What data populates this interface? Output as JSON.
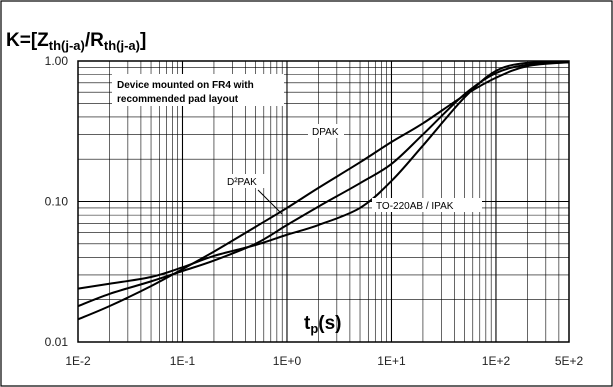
{
  "chart_data": {
    "type": "line",
    "title": "K=[Zth(j-a)/Rth(j-a)]",
    "title_parts": {
      "lead": "K=[Z",
      "sub1": "th(j-a)",
      "mid": "/R",
      "sub2": "th(j-a)",
      "tail": "]"
    },
    "xlabel": "tp(s)",
    "xlabel_parts": {
      "main": "t",
      "sub": "p",
      "tail": "(s)"
    },
    "ylabel": "",
    "x_scale": "log",
    "y_scale": "log",
    "xlim": [
      0.01,
      500
    ],
    "ylim": [
      0.01,
      1.0
    ],
    "x_ticks": [
      {
        "value": 0.01,
        "label": "1E-2"
      },
      {
        "value": 0.1,
        "label": "1E-1"
      },
      {
        "value": 1,
        "label": "1E+0"
      },
      {
        "value": 10,
        "label": "1E+1"
      },
      {
        "value": 100,
        "label": "1E+2"
      },
      {
        "value": 500,
        "label": "5E+2"
      }
    ],
    "y_ticks": [
      {
        "value": 0.01,
        "label": "0.01"
      },
      {
        "value": 0.1,
        "label": "0.10"
      },
      {
        "value": 1.0,
        "label": "1.00"
      }
    ],
    "grid": true,
    "note": [
      "Device mounted on FR4 with",
      "recommended pad layout"
    ],
    "series": [
      {
        "name": "DPAK",
        "x": [
          0.01,
          0.02,
          0.05,
          0.1,
          0.2,
          0.5,
          1,
          2,
          5,
          10,
          20,
          50,
          100,
          200,
          500
        ],
        "y": [
          0.0145,
          0.018,
          0.025,
          0.033,
          0.044,
          0.066,
          0.09,
          0.125,
          0.19,
          0.265,
          0.36,
          0.57,
          0.76,
          0.92,
          0.98
        ]
      },
      {
        "name": "D²PAK",
        "x": [
          0.01,
          0.02,
          0.05,
          0.1,
          0.2,
          0.5,
          1,
          2,
          5,
          10,
          20,
          50,
          100,
          200,
          500
        ],
        "y": [
          0.018,
          0.022,
          0.027,
          0.032,
          0.038,
          0.05,
          0.068,
          0.092,
          0.135,
          0.185,
          0.3,
          0.58,
          0.82,
          0.94,
          0.98
        ]
      },
      {
        "name": "TO-220AB / IPAK",
        "x": [
          0.01,
          0.02,
          0.05,
          0.1,
          0.2,
          0.5,
          1,
          2,
          5,
          10,
          20,
          50,
          100,
          200,
          500
        ],
        "y": [
          0.024,
          0.026,
          0.029,
          0.034,
          0.041,
          0.049,
          0.058,
          0.068,
          0.09,
          0.14,
          0.25,
          0.55,
          0.85,
          0.97,
          0.98
        ]
      }
    ],
    "series_labels": [
      "DPAK",
      "D²PAK",
      "TO-220AB / IPAK"
    ]
  }
}
